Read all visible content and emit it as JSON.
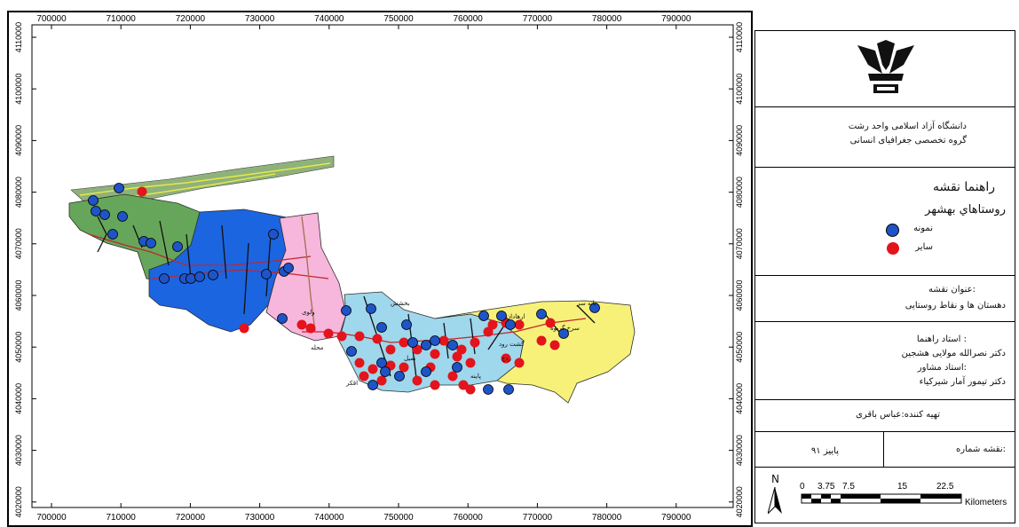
{
  "map": {
    "x_ticks": [
      "700000",
      "710000",
      "720000",
      "730000",
      "740000",
      "750000",
      "760000",
      "770000",
      "780000",
      "790000"
    ],
    "y_ticks": [
      "4110000",
      "4100000",
      "4090000",
      "4080000",
      "4070000",
      "4060000",
      "4050000",
      "4040000",
      "4030000",
      "4020000"
    ],
    "region_colors": {
      "west_green": "#66a65a",
      "blue": "#1b65e0",
      "pink": "#f7b6dc",
      "light_blue": "#9fd7ec",
      "yellow": "#f7f17a",
      "coast_strip": "#8fb27a"
    },
    "sample_color": "#1f54c8",
    "other_color": "#e3141b",
    "village_labels": [
      "ﺑﺎﻧﻪ ﺳﺮ",
      "ﺳﺮخ ﮔﺮﯾﻮه",
      "ﮔﺸﺖ ﺭﻭﺩ",
      "ﺭﺩﺥ",
      "ﺍﺭﻫﺎﺩﺍﻥ",
      "ﺑﺨﺸﺶ",
      "ﻭﻟﻮﯼ",
      "ﻣﺤﻠﻪ",
      "ﺍﻗﮑﺮ",
      "ﭘﺎﯾﻨﻪ",
      "ﻧﻤﯿﻞ"
    ]
  },
  "panel": {
    "university_line1": "دانشگاه آزاد اسلامی واحد رشت",
    "university_line2": "گروه تخصصی جغرافیای انسانی",
    "legend_title": "راهنما نقشه",
    "legend_subtitle": "روستاهاي بهشهر",
    "legend_sample": "نمونه",
    "legend_other": "سایر",
    "map_title_label": ":عنوان نقشه",
    "map_title": "دهستان ها و نقاط روستایی",
    "supervisor_label": ": استاد راهنما",
    "supervisor_name": "دکتر نصرالله مولایی هشجین",
    "advisor_label": ":استاد مشاور",
    "advisor_name": "دکتر تیمور آمار شیرکیاء",
    "prepared_by": "تهیه کننده:عباس باقری",
    "map_number_label": ":نقشه شماره",
    "season": "پاییز ۹۱",
    "north_letter": "N",
    "scale_ticks": [
      "0",
      "3.75",
      "7.5",
      "15",
      "22.5"
    ],
    "scale_unit": "Kilometers"
  }
}
